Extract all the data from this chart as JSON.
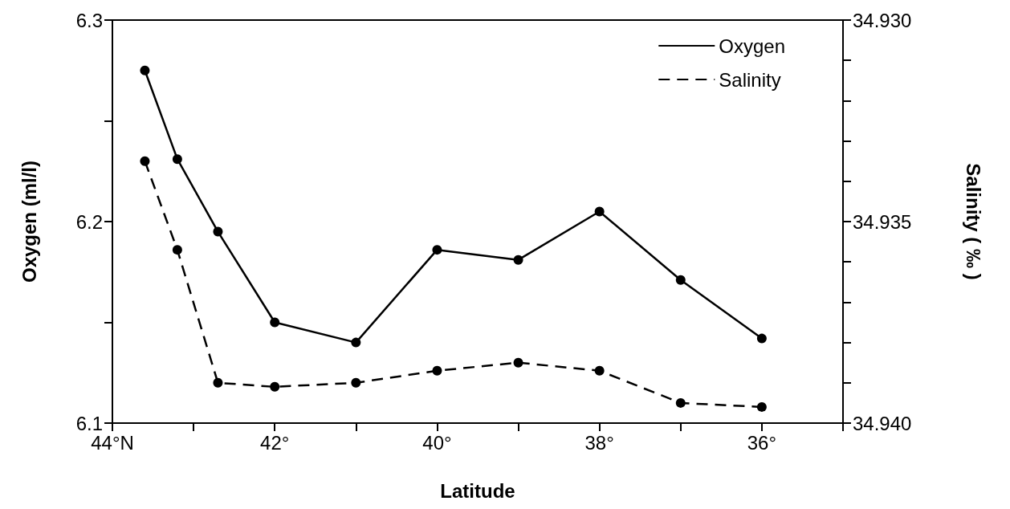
{
  "chart_data": {
    "type": "line",
    "xlabel": "Latitude",
    "ylabel": "Oxygen (ml/l)",
    "y2label": "Salinity ( ‰ )",
    "x": [
      43.6,
      43.2,
      42.7,
      42,
      41,
      40,
      39,
      38,
      37,
      36
    ],
    "series": [
      {
        "name": "Oxygen",
        "color": "#000000",
        "line_style": "solid",
        "values": [
          6.275,
          6.231,
          6.195,
          6.15,
          6.14,
          6.186,
          6.181,
          6.205,
          6.171,
          6.142
        ]
      },
      {
        "name": "Salinity",
        "color": "#000000",
        "line_style": "dashed",
        "axis": "y2",
        "values": [
          34.9335,
          34.9357,
          34.939,
          34.9391,
          34.939,
          34.9387,
          34.9385,
          34.9387,
          34.9395,
          34.9396
        ]
      }
    ],
    "xlim": [
      44,
      35
    ],
    "xticks": [
      {
        "value": 44,
        "label": "44°N"
      },
      {
        "value": 43,
        "label": null
      },
      {
        "value": 42,
        "label": "42°"
      },
      {
        "value": 41,
        "label": null
      },
      {
        "value": 40,
        "label": "40°"
      },
      {
        "value": 39,
        "label": null
      },
      {
        "value": 38,
        "label": "38°"
      },
      {
        "value": 37,
        "label": null
      },
      {
        "value": 36,
        "label": "36°"
      },
      {
        "value": 35,
        "label": null
      }
    ],
    "ylim": [
      6.1,
      6.3
    ],
    "yticks": [
      6.1,
      {
        "value": 6.15,
        "label": null
      },
      6.2,
      {
        "value": 6.25,
        "label": null
      },
      6.3
    ],
    "y2lim": [
      34.94,
      34.93
    ],
    "y2ticks": [
      {
        "value": 34.93,
        "label": "34.930"
      },
      {
        "value": 34.931,
        "label": null
      },
      {
        "value": 34.932,
        "label": null
      },
      {
        "value": 34.933,
        "label": null
      },
      {
        "value": 34.934,
        "label": null
      },
      {
        "value": 34.935,
        "label": "34.935"
      },
      {
        "value": 34.936,
        "label": null
      },
      {
        "value": 34.937,
        "label": null
      },
      {
        "value": 34.938,
        "label": null
      },
      {
        "value": 34.939,
        "label": null
      },
      {
        "value": 34.94,
        "label": "34.940"
      }
    ],
    "marker": "circle",
    "legend": "top right"
  }
}
